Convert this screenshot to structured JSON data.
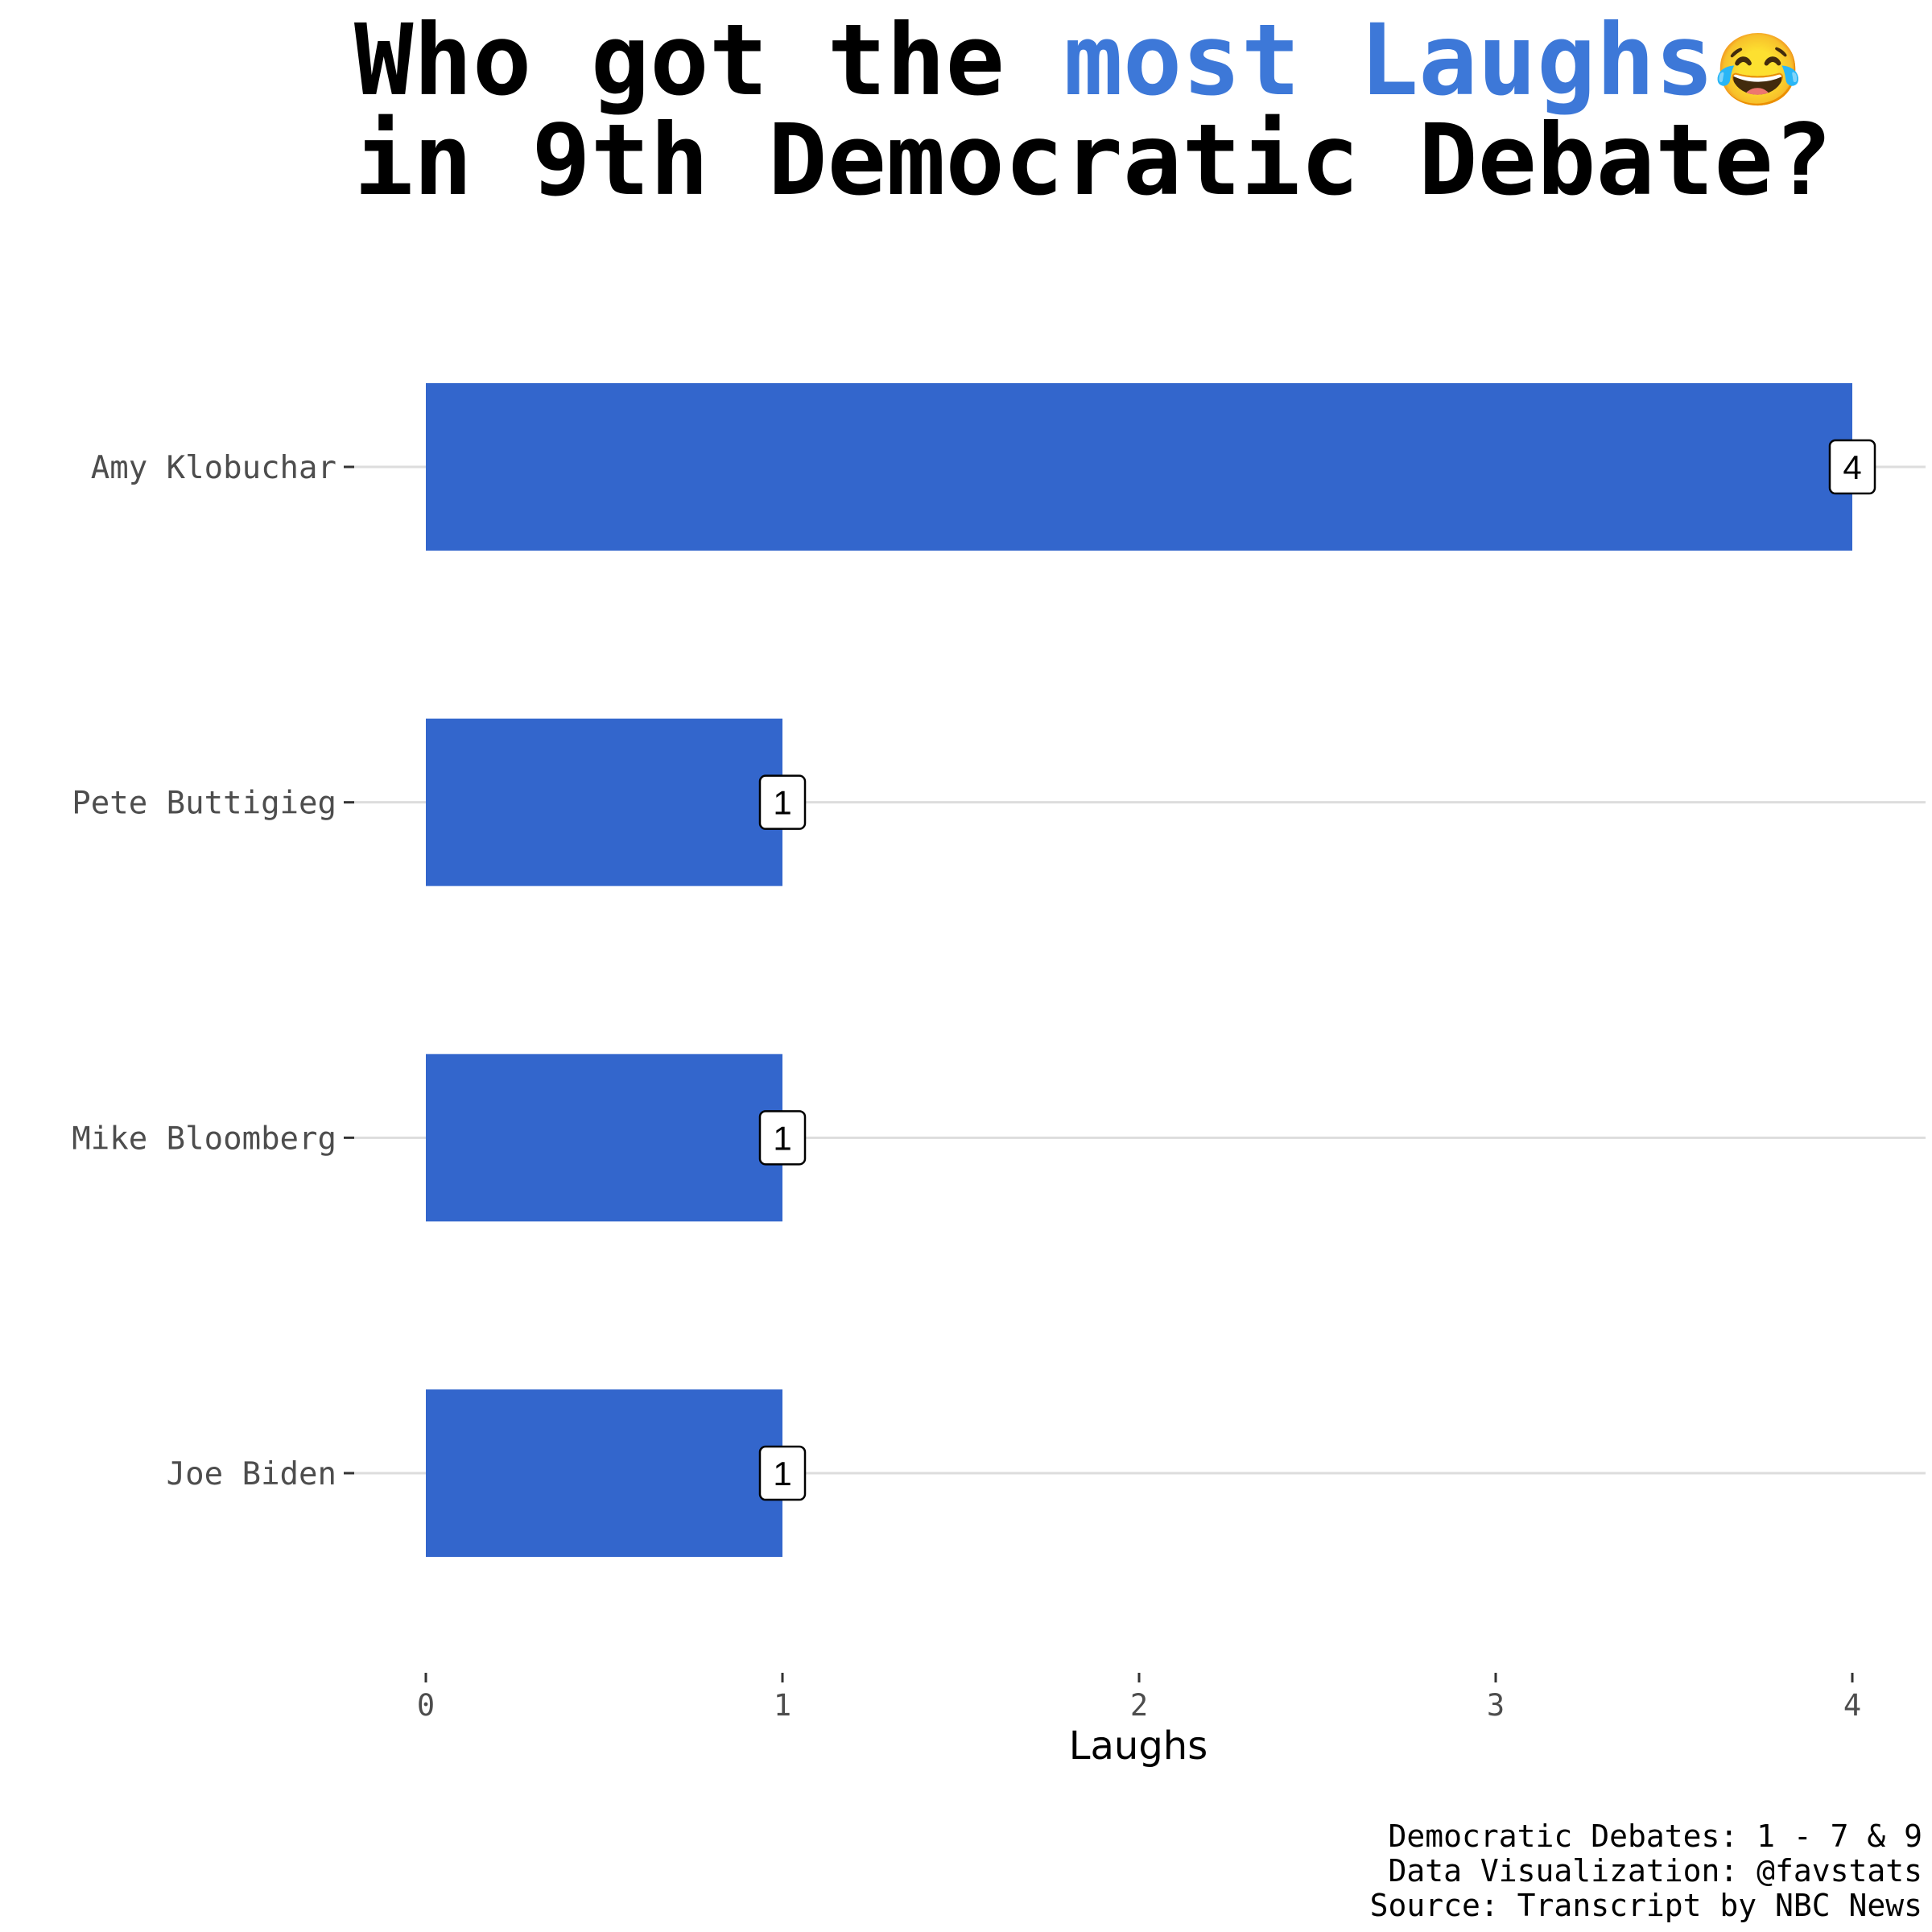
{
  "chart_data": {
    "type": "bar",
    "orientation": "horizontal",
    "title": {
      "line1_prefix": "Who got the ",
      "line1_highlight": "most Laughs",
      "line1_emoji": "😂",
      "line2": "in 9th Democratic Debate?"
    },
    "categories": [
      "Amy Klobuchar",
      "Pete Buttigieg",
      "Mike Bloomberg",
      "Joe Biden"
    ],
    "values": [
      4,
      1,
      1,
      1
    ],
    "xlabel": "Laughs",
    "ylabel": "",
    "xlim": [
      0,
      4
    ],
    "xticks": [
      "0",
      "1",
      "2",
      "3",
      "4"
    ],
    "grid": "horizontal major lines at each category",
    "legend": "none",
    "caption": [
      "Democratic Debates: 1 - 7 & 9",
      "Data Visualization: @favstats",
      "Source: Transcript by NBC News"
    ],
    "colors": {
      "bar": "#3366cc",
      "title_highlight": "#3d78d8",
      "grid": "#dddddd",
      "axis_text": "#4d4d4d"
    }
  }
}
